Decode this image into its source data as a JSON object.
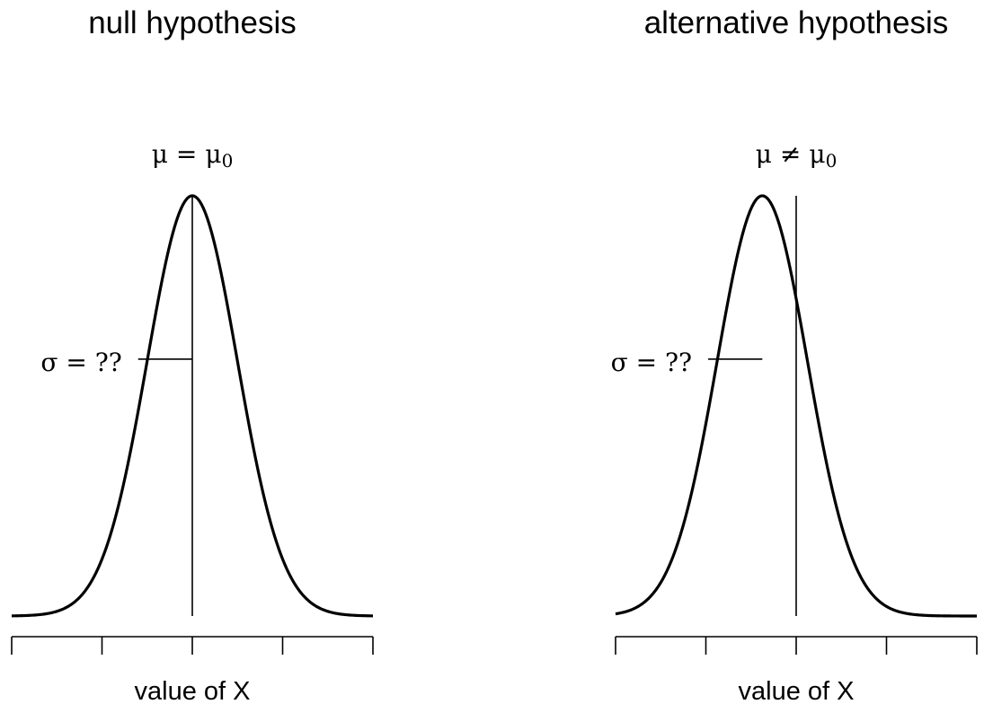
{
  "chart_data": [
    {
      "type": "line",
      "title": "null hypothesis",
      "xlabel": "value of X",
      "ylabel": "",
      "xlim": [
        -4,
        4
      ],
      "ticks": [
        -4,
        -2,
        0,
        2,
        4
      ],
      "series": [
        {
          "distribution": "normal",
          "mean": 0,
          "sd": 1
        }
      ],
      "mean_label": {
        "lhs": "μ",
        "op": "=",
        "rhs": "μ",
        "rhs_subscript": "0"
      },
      "mean_line_x": 0,
      "sigma_label": "σ = ??",
      "sigma_segment": [
        -1,
        0
      ]
    },
    {
      "type": "line",
      "title": "alternative hypothesis",
      "xlabel": "value of X",
      "ylabel": "",
      "xlim": [
        -4,
        4
      ],
      "ticks": [
        -4,
        -2,
        0,
        2,
        4
      ],
      "series": [
        {
          "distribution": "normal",
          "mean": -0.75,
          "sd": 1
        }
      ],
      "mean_label": {
        "lhs": "μ",
        "op": "≠",
        "rhs": "μ",
        "rhs_subscript": "0"
      },
      "mean_line_x": 0,
      "sigma_label": "σ = ??",
      "sigma_segment": [
        -1.75,
        -0.75
      ]
    }
  ]
}
